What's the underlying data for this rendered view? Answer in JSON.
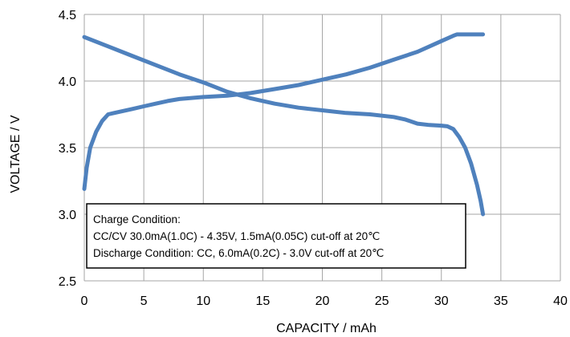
{
  "chart_data": {
    "type": "line",
    "title": "",
    "xlabel": "CAPACITY / mAh",
    "ylabel": "VOLTAGE / V",
    "xlim": [
      0,
      40
    ],
    "ylim": [
      2.5,
      4.5
    ],
    "x_ticks": [
      "0",
      "5",
      "10",
      "15",
      "20",
      "25",
      "30",
      "35",
      "40"
    ],
    "y_ticks": [
      "2.5",
      "3.0",
      "3.5",
      "4.0",
      "4.5"
    ],
    "grid": true,
    "legend": "none",
    "line_color": "#4f81bd",
    "annotation": {
      "lines": [
        "Charge Condition:",
        "CC/CV 30.0mA(1.0C) - 4.35V, 1.5mA(0.05C) cut-off at  20℃",
        "Discharge Condition: CC, 6.0mA(0.2C) - 3.0V cut-off at 20℃"
      ]
    },
    "series": [
      {
        "x": [
          0,
          0.2,
          0.5,
          1.0,
          1.5,
          2.0,
          2.5,
          3,
          4,
          5,
          6,
          7,
          8,
          10,
          12,
          14,
          16,
          18,
          20,
          22,
          24,
          26,
          28,
          30,
          31,
          31.3,
          33.5
        ],
        "y": [
          3.19,
          3.35,
          3.5,
          3.62,
          3.7,
          3.75,
          3.76,
          3.77,
          3.79,
          3.81,
          3.83,
          3.85,
          3.865,
          3.88,
          3.89,
          3.91,
          3.94,
          3.97,
          4.01,
          4.05,
          4.1,
          4.16,
          4.22,
          4.3,
          4.34,
          4.35,
          4.35
        ]
      },
      {
        "x": [
          0,
          2,
          4,
          6,
          8,
          10,
          12,
          14,
          16,
          18,
          20,
          22,
          24,
          26,
          27,
          28,
          29,
          30,
          30.5,
          31,
          31.5,
          32,
          32.5,
          33,
          33.3,
          33.5
        ],
        "y": [
          4.33,
          4.26,
          4.19,
          4.12,
          4.05,
          3.99,
          3.92,
          3.87,
          3.83,
          3.8,
          3.78,
          3.76,
          3.75,
          3.73,
          3.71,
          3.68,
          3.67,
          3.665,
          3.66,
          3.64,
          3.58,
          3.5,
          3.38,
          3.22,
          3.1,
          3.0
        ]
      }
    ]
  }
}
